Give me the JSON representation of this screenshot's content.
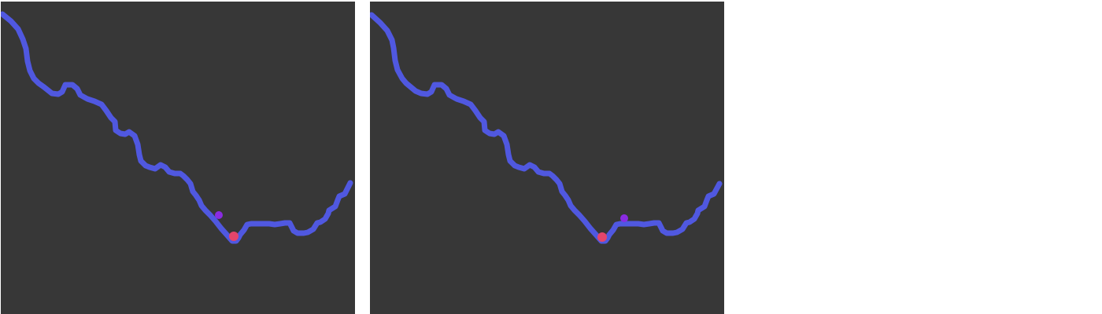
{
  "colors": {
    "page_background": "#ffffff",
    "panel_background": "#373737",
    "track": "#5058e0",
    "ball": "#e5456b",
    "target": "#8a2be2"
  },
  "panels": [
    {
      "name": "frame-1",
      "elements": [
        "terrain-track",
        "ball",
        "target-marker"
      ]
    },
    {
      "name": "frame-2",
      "elements": [
        "terrain-track",
        "ball",
        "target-marker"
      ]
    }
  ]
}
